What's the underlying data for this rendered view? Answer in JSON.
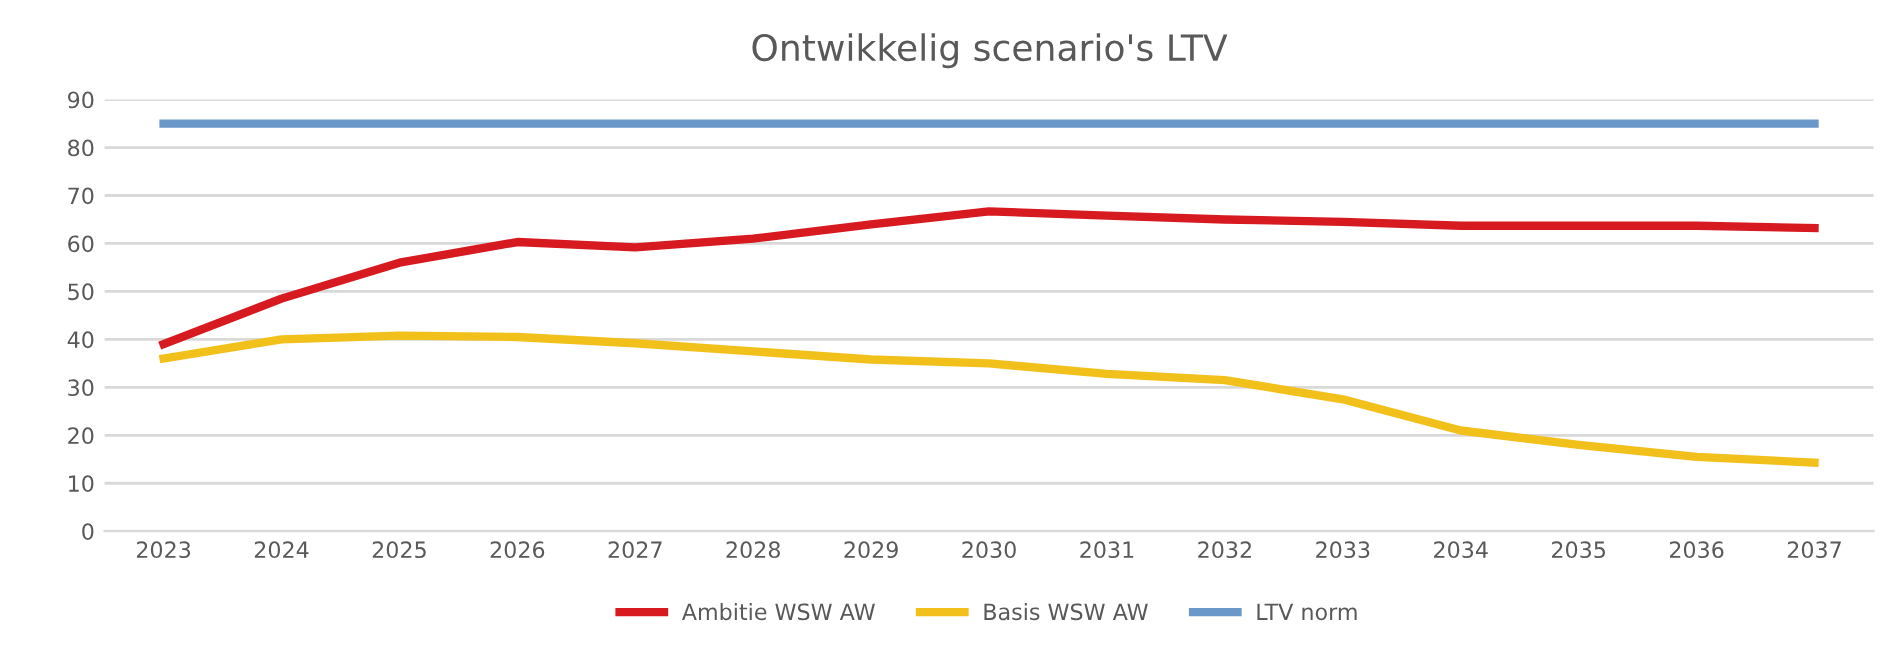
{
  "chart_data": {
    "type": "line",
    "title": "Ontwikkelig scenario's LTV",
    "categories": [
      "2023",
      "2024",
      "2025",
      "2026",
      "2027",
      "2028",
      "2029",
      "2030",
      "2031",
      "2032",
      "2033",
      "2034",
      "2035",
      "2036",
      "2037"
    ],
    "series": [
      {
        "name": "Ambitie WSW AW",
        "color": "#d71920",
        "values": [
          39,
          48.5,
          56,
          60.3,
          59.2,
          61,
          64,
          66.7,
          65.8,
          65,
          64.5,
          63.7,
          63.7,
          63.7,
          63.2
        ]
      },
      {
        "name": "Basis WSW AW",
        "color": "#f2c01a",
        "values": [
          36,
          40,
          40.8,
          40.5,
          39.2,
          37.5,
          35.8,
          35,
          32.8,
          31.5,
          27.5,
          21,
          18,
          15.5,
          14.3
        ]
      },
      {
        "name": "LTV norm",
        "color": "#6a98c8",
        "values": [
          85,
          85,
          85,
          85,
          85,
          85,
          85,
          85,
          85,
          85,
          85,
          85,
          85,
          85,
          85
        ]
      }
    ],
    "ylim": [
      0,
      90
    ],
    "yticks": [
      0,
      10,
      20,
      30,
      40,
      50,
      60,
      70,
      80,
      90
    ],
    "grid": "y",
    "legend": "bottom",
    "marker": "none",
    "line_style": "solid"
  }
}
